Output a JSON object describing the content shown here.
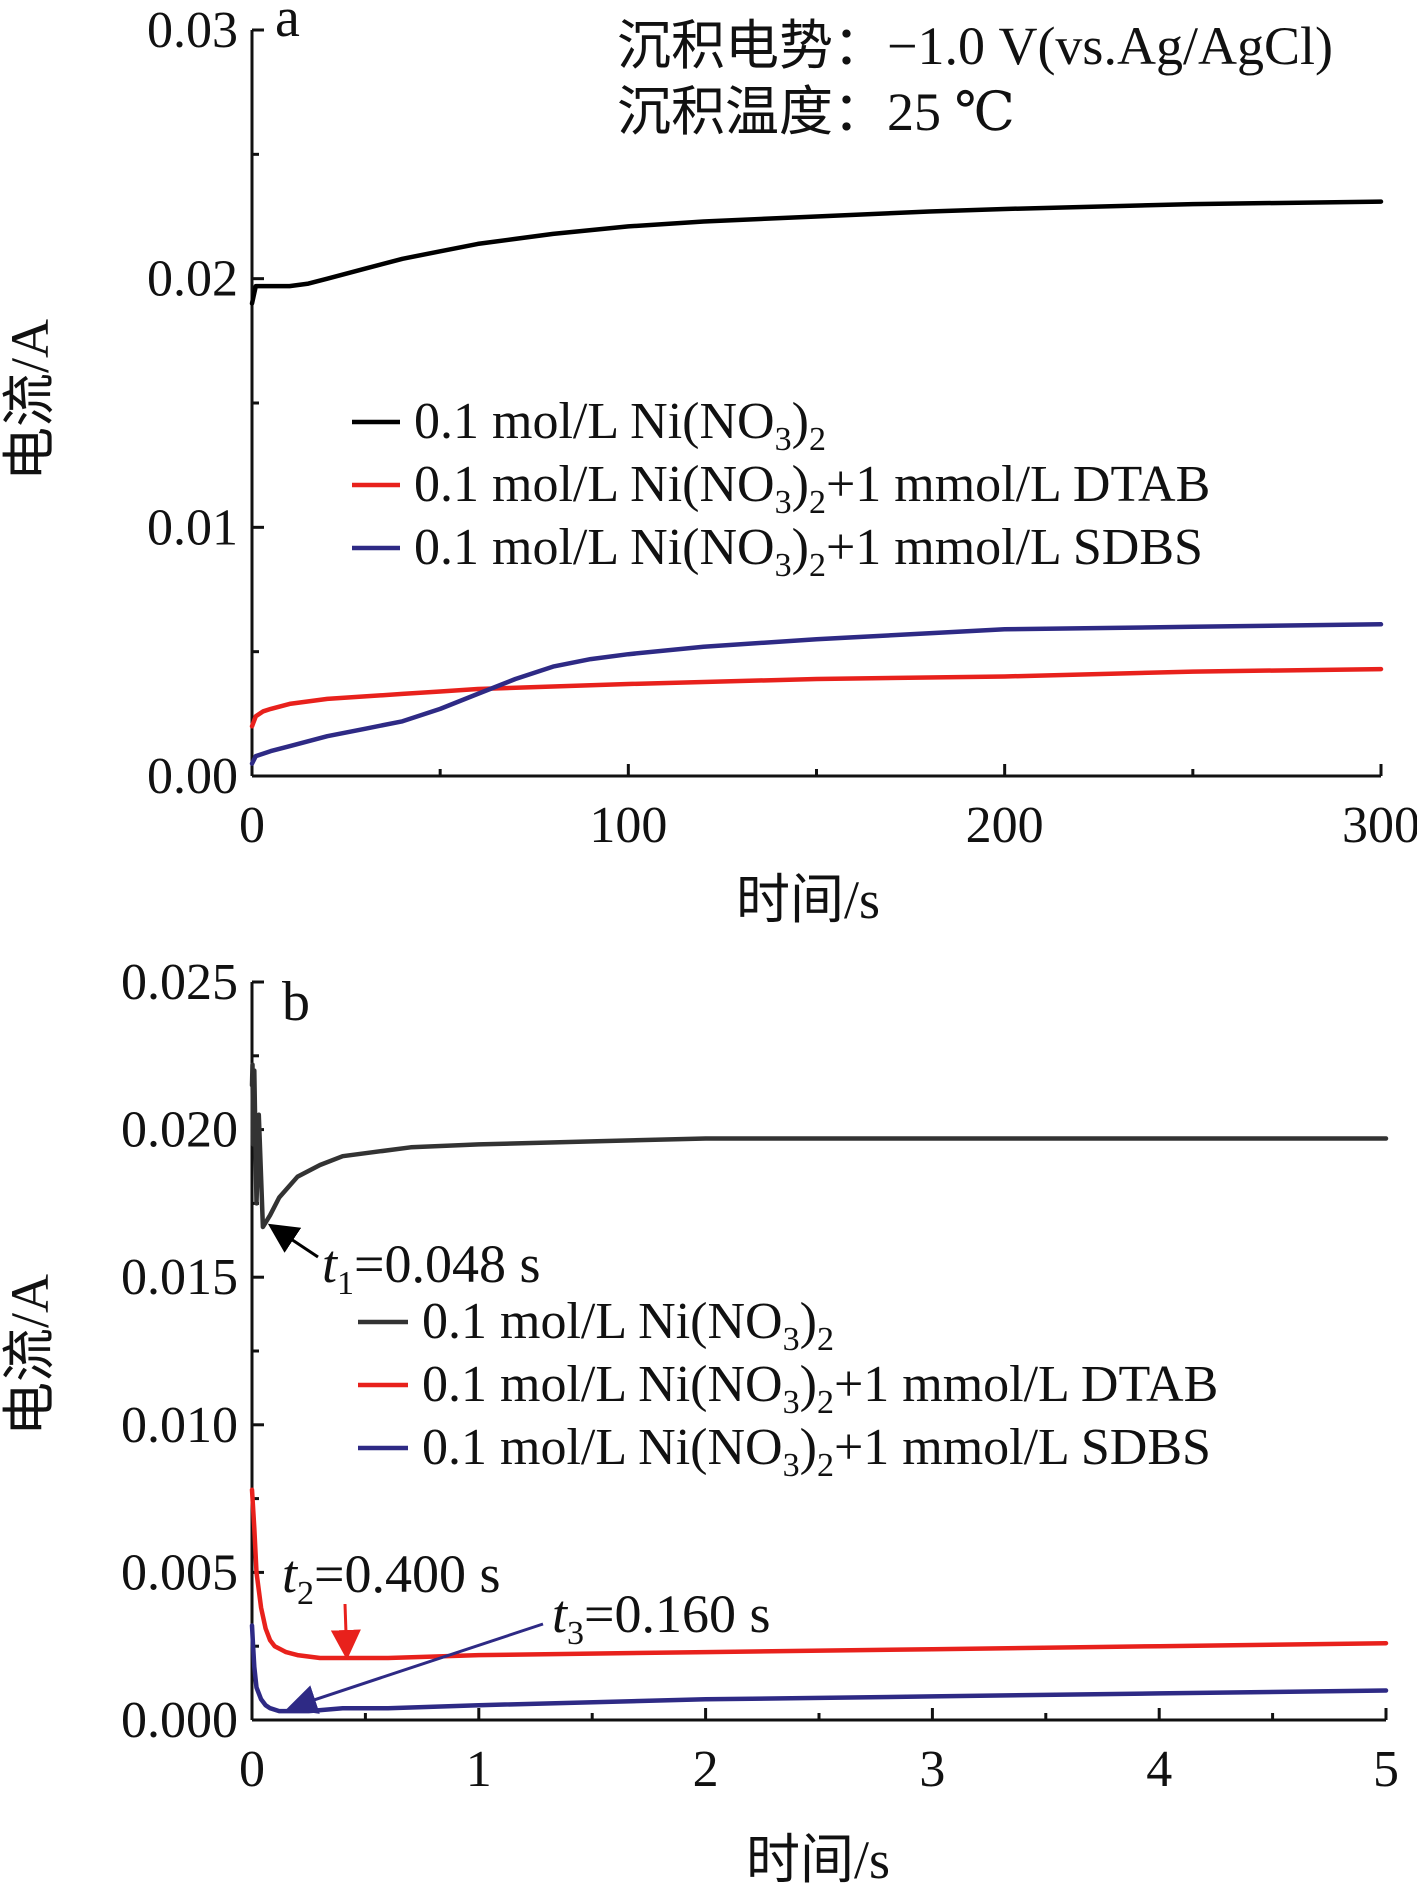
{
  "chart_data": [
    {
      "panel_label": "a",
      "type": "line",
      "xlabel": "时间/s",
      "ylabel": "电流/A",
      "xlim": [
        0,
        300
      ],
      "ylim": [
        0,
        0.03
      ],
      "xticks": [
        "0",
        "100",
        "200",
        "300"
      ],
      "yticks": [
        "0.00",
        "0.01",
        "0.02",
        "0.03"
      ],
      "annotations": [
        "沉积电势：−1.0 V(vs.Ag/AgCl)",
        "沉积温度：25 ℃"
      ],
      "legend_position": "center-right",
      "series": [
        {
          "name": "0.1 mol/L Ni(NO₃)₂",
          "legend_main": "0.1 mol/L Ni(NO",
          "legend_sub": "3",
          "legend_tail": ")",
          "legend_sub2": "2",
          "legend_end": "",
          "color": "#000000",
          "x": [
            0,
            1,
            3,
            5,
            10,
            15,
            20,
            30,
            40,
            50,
            60,
            70,
            80,
            100,
            120,
            150,
            180,
            200,
            250,
            300
          ],
          "y": [
            0.019,
            0.0197,
            0.0197,
            0.0197,
            0.0197,
            0.0198,
            0.02,
            0.0204,
            0.0208,
            0.0211,
            0.0214,
            0.0216,
            0.0218,
            0.0221,
            0.0223,
            0.0225,
            0.0227,
            0.0228,
            0.023,
            0.0231
          ]
        },
        {
          "name": "0.1 mol/L Ni(NO₃)₂+1 mmol/L DTAB",
          "legend_main": "0.1 mol/L Ni(NO",
          "legend_sub": "3",
          "legend_tail": ")",
          "legend_sub2": "2",
          "legend_end": "+1 mmol/L DTAB",
          "color": "#e8211c",
          "x": [
            0,
            1,
            3,
            5,
            10,
            20,
            30,
            40,
            50,
            60,
            80,
            100,
            150,
            200,
            250,
            300
          ],
          "y": [
            0.002,
            0.0024,
            0.0026,
            0.0027,
            0.0029,
            0.0031,
            0.0032,
            0.0033,
            0.0034,
            0.0035,
            0.0036,
            0.0037,
            0.0039,
            0.004,
            0.0042,
            0.0043
          ]
        },
        {
          "name": "0.1 mol/L Ni(NO₃)₂+1 mmol/L SDBS",
          "legend_main": "0.1 mol/L Ni(NO",
          "legend_sub": "3",
          "legend_tail": ")",
          "legend_sub2": "2",
          "legend_end": "+1 mmol/L SDBS",
          "color": "#2e2a85",
          "x": [
            0,
            1,
            3,
            5,
            10,
            20,
            30,
            40,
            50,
            60,
            70,
            80,
            90,
            100,
            120,
            150,
            200,
            250,
            300
          ],
          "y": [
            0.0005,
            0.0008,
            0.0009,
            0.001,
            0.0012,
            0.0016,
            0.0019,
            0.0022,
            0.0027,
            0.0033,
            0.0039,
            0.0044,
            0.0047,
            0.0049,
            0.0052,
            0.0055,
            0.0059,
            0.006,
            0.0061
          ]
        }
      ]
    },
    {
      "panel_label": "b",
      "type": "line",
      "xlabel": "时间/s",
      "ylabel": "电流/A",
      "xlim": [
        0,
        5
      ],
      "ylim": [
        0,
        0.025
      ],
      "xticks": [
        "0",
        "1",
        "2",
        "3",
        "4",
        "5"
      ],
      "yticks": [
        "0.000",
        "0.005",
        "0.010",
        "0.015",
        "0.020",
        "0.025"
      ],
      "legend_position": "center-right",
      "series": [
        {
          "name": "0.1 mol/L Ni(NO₃)₂",
          "legend_main": "0.1 mol/L Ni(NO",
          "legend_sub": "3",
          "legend_tail": ")",
          "legend_sub2": "2",
          "legend_end": "",
          "color": "#333333",
          "x": [
            0,
            0.002,
            0.005,
            0.01,
            0.02,
            0.03,
            0.048,
            0.08,
            0.12,
            0.2,
            0.3,
            0.4,
            0.5,
            0.7,
            1.0,
            1.5,
            2,
            3,
            4,
            5
          ],
          "y": [
            0.0215,
            0.0222,
            0.0195,
            0.022,
            0.0175,
            0.0205,
            0.0167,
            0.0171,
            0.0177,
            0.0184,
            0.0188,
            0.0191,
            0.0192,
            0.0194,
            0.0195,
            0.0196,
            0.0197,
            0.0197,
            0.0197,
            0.0197
          ]
        },
        {
          "name": "0.1 mol/L Ni(NO₃)₂+1 mmol/L DTAB",
          "legend_main": "0.1 mol/L Ni(NO",
          "legend_sub": "3",
          "legend_tail": ")",
          "legend_sub2": "2",
          "legend_end": "+1 mmol/L DTAB",
          "color": "#e8211c",
          "x": [
            0,
            0.01,
            0.02,
            0.04,
            0.06,
            0.08,
            0.1,
            0.15,
            0.2,
            0.3,
            0.4,
            0.6,
            1.0,
            2,
            3,
            4,
            5
          ],
          "y": [
            0.0078,
            0.0065,
            0.005,
            0.0038,
            0.0031,
            0.0027,
            0.0025,
            0.0023,
            0.0022,
            0.0021,
            0.0021,
            0.0021,
            0.0022,
            0.0023,
            0.0024,
            0.0025,
            0.0026
          ]
        },
        {
          "name": "0.1 mol/L Ni(NO₃)₂+1 mmol/L SDBS",
          "legend_main": "0.1 mol/L Ni(NO",
          "legend_sub": "3",
          "legend_tail": ")",
          "legend_sub2": "2",
          "legend_end": "+1 mmol/L SDBS",
          "color": "#2e2a85",
          "x": [
            0,
            0.005,
            0.01,
            0.02,
            0.04,
            0.06,
            0.08,
            0.12,
            0.16,
            0.25,
            0.4,
            0.6,
            1.0,
            2,
            3,
            4,
            5
          ],
          "y": [
            0.0032,
            0.0025,
            0.0018,
            0.0011,
            0.0007,
            0.0005,
            0.0004,
            0.0003,
            0.0003,
            0.0003,
            0.0004,
            0.0004,
            0.0005,
            0.0007,
            0.0008,
            0.0009,
            0.001
          ]
        }
      ],
      "callouts": [
        {
          "letter": "t",
          "sub": "1",
          "value": "=0.048 s",
          "target_x": 0.048,
          "target_y": 0.0167,
          "color": "#000000"
        },
        {
          "letter": "t",
          "sub": "2",
          "value": "=0.400 s",
          "target_x": 0.4,
          "target_y": 0.0021,
          "color": "#e8211c"
        },
        {
          "letter": "t",
          "sub": "3",
          "value": "=0.160 s",
          "target_x": 0.16,
          "target_y": 0.0003,
          "color": "#2e2a85"
        }
      ]
    }
  ]
}
